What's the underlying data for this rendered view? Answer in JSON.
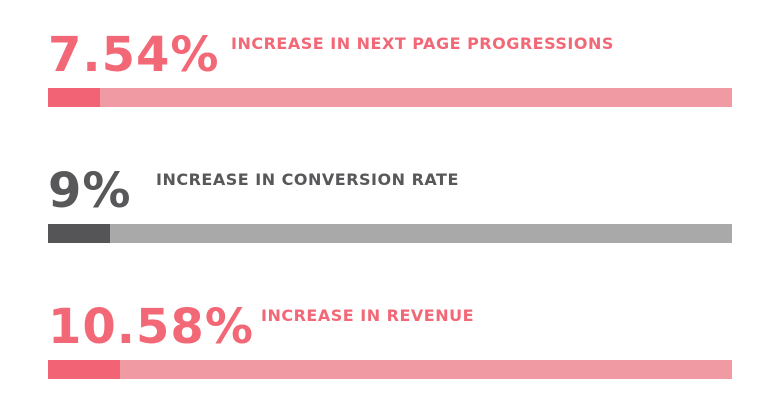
{
  "colors": {
    "pink_text": "#f26876",
    "pink_fill": "#f26475",
    "pink_track": "#f09ba3",
    "grey_text": "#58585a",
    "grey_fill": "#555557",
    "grey_track": "#a9a9a9"
  },
  "chart_data": {
    "type": "bar",
    "stats": [
      {
        "value_label": "7.54%",
        "value": 7.54,
        "label": "INCREASE IN NEXT PAGE PROGRESSIONS",
        "theme": "pink"
      },
      {
        "value_label": "9%",
        "value": 9,
        "label": "INCREASE IN CONVERSION RATE",
        "theme": "grey"
      },
      {
        "value_label": "10.58%",
        "value": 10.58,
        "label": "INCREASE IN REVENUE",
        "theme": "pink"
      }
    ],
    "xlim": [
      0,
      100
    ]
  }
}
